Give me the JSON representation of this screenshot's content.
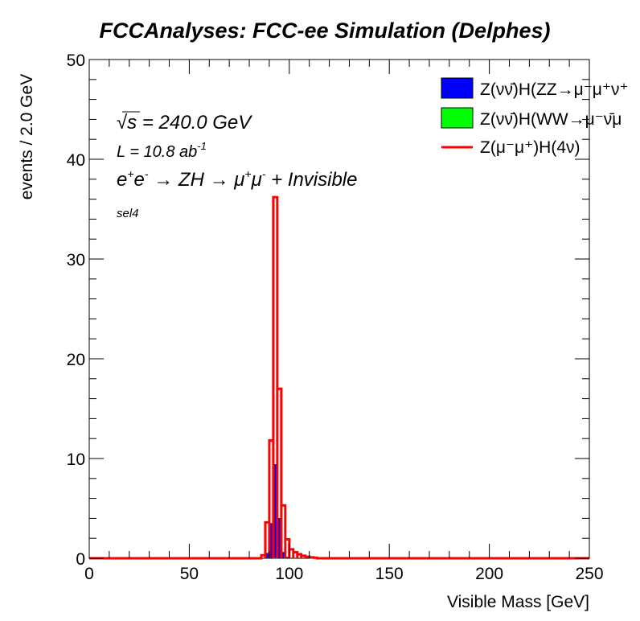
{
  "chart_data": {
    "type": "histogram",
    "title": "FCCAnalyses: FCC-ee Simulation (Delphes)",
    "xlabel": "Visible Mass [GeV]",
    "ylabel": "events / 2.0 GeV",
    "xlim": [
      0,
      250
    ],
    "ylim": [
      0,
      50
    ],
    "bin_width": 2.0,
    "x_ticks": [
      "0",
      "50",
      "100",
      "150",
      "200",
      "250"
    ],
    "y_ticks": [
      "0",
      "10",
      "20",
      "30",
      "40",
      "50"
    ],
    "annotations": {
      "sqrt_s_symbol": "√s",
      "sqrt_s_text": " = 240.0 GeV",
      "lumi_prefix": "L = 10.8 ab",
      "lumi_exp": "-1",
      "process_e1": "e",
      "process_e1_sup": "+",
      "process_e2": "e",
      "process_e2_sup": "-",
      "process_arrow1": " → ZH → ",
      "process_mu1": "μ",
      "process_mu1_sup": "+",
      "process_mu2": "μ",
      "process_mu2_sup": "-",
      "process_tail": " + Invisible",
      "selection": "sel4"
    },
    "series": [
      {
        "name": "Z(νν̄)H(ZZ→μ⁻μ⁺ν⁺",
        "style": "filled",
        "color": "#0000ff",
        "bins": [
          {
            "x0": 88,
            "x1": 90,
            "y": 0.5
          },
          {
            "x0": 90,
            "x1": 92,
            "y": 3.5
          },
          {
            "x0": 92,
            "x1": 94,
            "y": 9.4
          },
          {
            "x0": 94,
            "x1": 96,
            "y": 4.0
          },
          {
            "x0": 96,
            "x1": 98,
            "y": 0.6
          },
          {
            "x0": 98,
            "x1": 100,
            "y": 0.1
          }
        ]
      },
      {
        "name": "Z(νν̄)H(WW→μ⁻ν̄μ",
        "style": "filled",
        "color": "#00ff00",
        "bins": [
          {
            "x0": 92,
            "x1": 94,
            "y": 0.1
          }
        ]
      },
      {
        "name": "Z(μ⁻μ⁺)H(4ν)",
        "style": "line",
        "color": "#ff0000",
        "bins": [
          {
            "x0": 86,
            "x1": 88,
            "y": 0.3
          },
          {
            "x0": 88,
            "x1": 90,
            "y": 3.6
          },
          {
            "x0": 90,
            "x1": 92,
            "y": 11.8
          },
          {
            "x0": 92,
            "x1": 94,
            "y": 36.2
          },
          {
            "x0": 94,
            "x1": 96,
            "y": 17.0
          },
          {
            "x0": 96,
            "x1": 98,
            "y": 5.3
          },
          {
            "x0": 98,
            "x1": 100,
            "y": 1.9
          },
          {
            "x0": 100,
            "x1": 102,
            "y": 0.9
          },
          {
            "x0": 102,
            "x1": 104,
            "y": 0.6
          },
          {
            "x0": 104,
            "x1": 106,
            "y": 0.4
          },
          {
            "x0": 106,
            "x1": 108,
            "y": 0.25
          },
          {
            "x0": 108,
            "x1": 110,
            "y": 0.15
          },
          {
            "x0": 110,
            "x1": 112,
            "y": 0.1
          },
          {
            "x0": 112,
            "x1": 114,
            "y": 0.05
          }
        ]
      }
    ]
  }
}
